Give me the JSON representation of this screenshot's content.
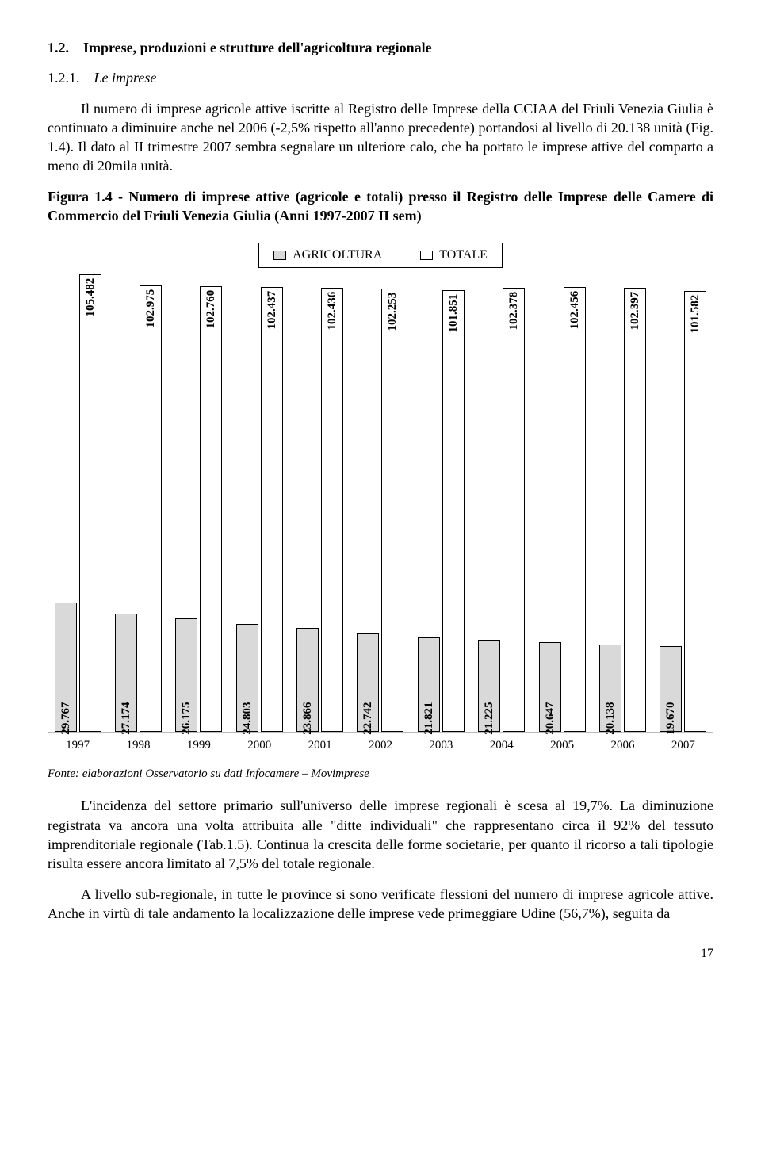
{
  "section": {
    "number": "1.2.",
    "title": "Imprese, produzioni e strutture dell'agricoltura regionale",
    "sub_number": "1.2.1.",
    "sub_title": "Le imprese"
  },
  "para1": "Il numero di imprese agricole attive iscritte al Registro delle Imprese della CCIAA del Friuli Venezia Giulia è continuato a diminuire anche nel 2006 (-2,5% rispetto all'anno precedente) portandosi al livello di 20.138 unità (Fig. 1.4). Il dato al II trimestre 2007 sembra segnalare un ulteriore calo, che ha portato le imprese attive del comparto a meno di 20mila unità.",
  "figure": {
    "caption": "Figura 1.4 - Numero di imprese attive (agricole e totali) presso il Registro delle Imprese delle Camere di Commercio del Friuli Venezia Giulia (Anni 1997-2007 II sem)",
    "legend": {
      "agri": "AGRICOLTURA",
      "tot": "TOTALE"
    },
    "years": [
      "1997",
      "1998",
      "1999",
      "2000",
      "2001",
      "2002",
      "2003",
      "2004",
      "2005",
      "2006",
      "2007"
    ],
    "agri_values": [
      "29.767",
      "27.174",
      "26.175",
      "24.803",
      "23.866",
      "22.742",
      "21.821",
      "21.225",
      "20.647",
      "20.138",
      "19.670"
    ],
    "tot_values": [
      "105.482",
      "102.975",
      "102.760",
      "102.437",
      "102.436",
      "102.253",
      "101.851",
      "102.378",
      "102.456",
      "102.397",
      "101.582"
    ],
    "max_scale": 106000,
    "colors": {
      "agri_fill": "#d9d9d9",
      "tot_fill": "#ffffff",
      "border": "#000000"
    }
  },
  "source": "Fonte: elaborazioni Osservatorio su dati Infocamere – Movimprese",
  "para2": "L'incidenza del settore primario sull'universo delle imprese regionali è scesa al 19,7%. La diminuzione registrata va ancora una volta attribuita alle \"ditte individuali\" che rappresentano circa il 92% del tessuto imprenditoriale regionale (Tab.1.5). Continua la crescita delle forme societarie, per quanto il ricorso a tali tipologie risulta essere ancora limitato al 7,5% del totale regionale.",
  "para3": "A livello sub-regionale, in tutte le province si sono verificate flessioni del numero di imprese agricole attive. Anche in virtù di tale andamento la localizzazione delle imprese vede primeggiare Udine (56,7%), seguita da",
  "page_number": "17"
}
